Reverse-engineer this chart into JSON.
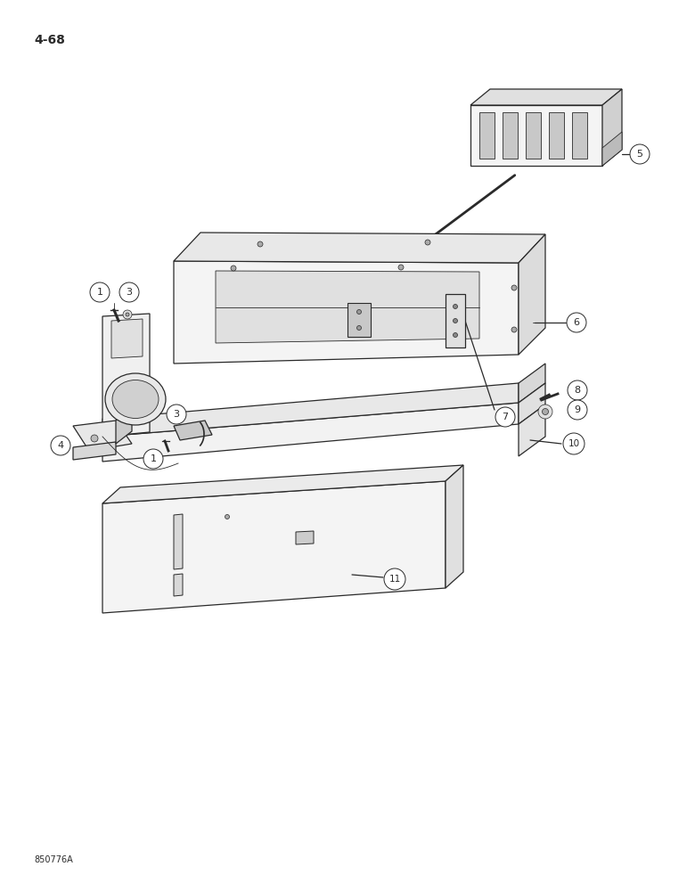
{
  "page_number": "4-68",
  "figure_code": "850776A",
  "bg": "#ffffff",
  "lc": "#2a2a2a",
  "lc_light": "#555555",
  "fc_white": "#ffffff",
  "fc_light": "#f0f0f0",
  "fc_mid": "#d8d8d8",
  "fc_dark": "#b8b8b8",
  "lw": 0.9,
  "lw_thin": 0.6
}
